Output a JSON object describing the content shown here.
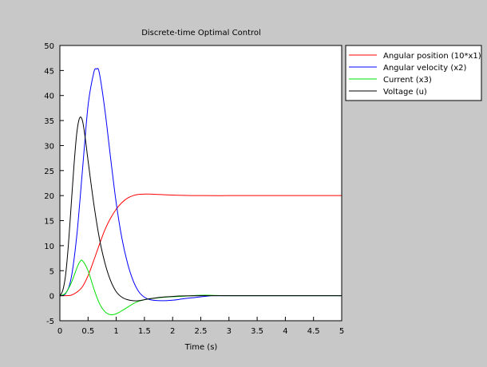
{
  "chart_data": {
    "type": "line",
    "title": "Discrete-time Optimal Control",
    "xlabel": "Time (s)",
    "ylabel": "",
    "xlim": [
      0,
      5
    ],
    "ylim": [
      -5,
      50
    ],
    "xticks": [
      "0",
      "0.5",
      "1",
      "1.5",
      "2",
      "2.5",
      "3",
      "3.5",
      "4",
      "4.5",
      "5"
    ],
    "yticks": [
      "-5",
      "0",
      "5",
      "10",
      "15",
      "20",
      "25",
      "30",
      "35",
      "40",
      "45",
      "50"
    ],
    "grid": false,
    "legend_position": "outside-right-top",
    "series": [
      {
        "name": "Angular position (10*x1)",
        "color": "#ff0000",
        "x": [
          0,
          0.1,
          0.2,
          0.3,
          0.4,
          0.5,
          0.6,
          0.7,
          0.8,
          0.9,
          1.0,
          1.1,
          1.2,
          1.3,
          1.4,
          1.5,
          1.6,
          1.7,
          1.8,
          2.0,
          2.2,
          2.5,
          3.0,
          3.5,
          4.0,
          4.5,
          5.0
        ],
        "y": [
          0,
          0.0,
          0.1,
          0.7,
          1.8,
          4.0,
          7.0,
          10.2,
          13.2,
          15.5,
          17.3,
          18.6,
          19.5,
          20.0,
          20.25,
          20.3,
          20.3,
          20.25,
          20.2,
          20.1,
          20.05,
          20.0,
          20.0,
          20.0,
          20.0,
          20.0,
          20.0
        ]
      },
      {
        "name": "Angular velocity (x2)",
        "color": "#0000ff",
        "x": [
          0,
          0.1,
          0.2,
          0.3,
          0.4,
          0.5,
          0.6,
          0.65,
          0.7,
          0.8,
          0.9,
          1.0,
          1.1,
          1.2,
          1.3,
          1.4,
          1.5,
          1.6,
          1.8,
          2.0,
          2.2,
          2.4,
          2.6,
          2.7,
          3.0,
          4.0,
          5.0
        ],
        "y": [
          0,
          0.4,
          3.5,
          12,
          25,
          38,
          44.5,
          45.3,
          44.5,
          37,
          27.5,
          18.5,
          11.5,
          6.5,
          3.0,
          0.8,
          -0.3,
          -0.8,
          -1.0,
          -0.9,
          -0.6,
          -0.35,
          -0.1,
          0.0,
          0.0,
          0.0,
          0.0
        ]
      },
      {
        "name": "Current (x3)",
        "color": "#00e000",
        "x": [
          0,
          0.1,
          0.2,
          0.3,
          0.35,
          0.4,
          0.5,
          0.6,
          0.7,
          0.8,
          0.9,
          1.0,
          1.1,
          1.2,
          1.3,
          1.4,
          1.5,
          1.6,
          1.8,
          2.0,
          2.2,
          2.4,
          2.6,
          2.8,
          3.0,
          4.0,
          5.0
        ],
        "y": [
          0,
          0.5,
          2.5,
          5.5,
          6.7,
          7.0,
          5.0,
          1.5,
          -1.5,
          -3.2,
          -3.8,
          -3.6,
          -3.0,
          -2.3,
          -1.6,
          -1.1,
          -0.8,
          -0.6,
          -0.35,
          -0.2,
          -0.1,
          0.05,
          0.1,
          0.05,
          0.0,
          0.0,
          0.0
        ]
      },
      {
        "name": "Voltage (u)",
        "color": "#000000",
        "x": [
          0,
          0.05,
          0.1,
          0.15,
          0.2,
          0.25,
          0.3,
          0.35,
          0.4,
          0.45,
          0.5,
          0.6,
          0.7,
          0.8,
          0.9,
          1.0,
          1.1,
          1.2,
          1.3,
          1.4,
          1.5,
          1.6,
          1.7,
          1.8,
          2.0,
          2.5,
          5.0
        ],
        "y": [
          0,
          1.0,
          4.0,
          10.0,
          18.0,
          26.0,
          32.5,
          35.5,
          35.0,
          31.5,
          27.0,
          18.5,
          11.5,
          6.5,
          3.0,
          0.8,
          -0.3,
          -0.8,
          -1.0,
          -1.0,
          -0.8,
          -0.6,
          -0.45,
          -0.3,
          -0.15,
          0.0,
          0.0
        ]
      }
    ]
  }
}
